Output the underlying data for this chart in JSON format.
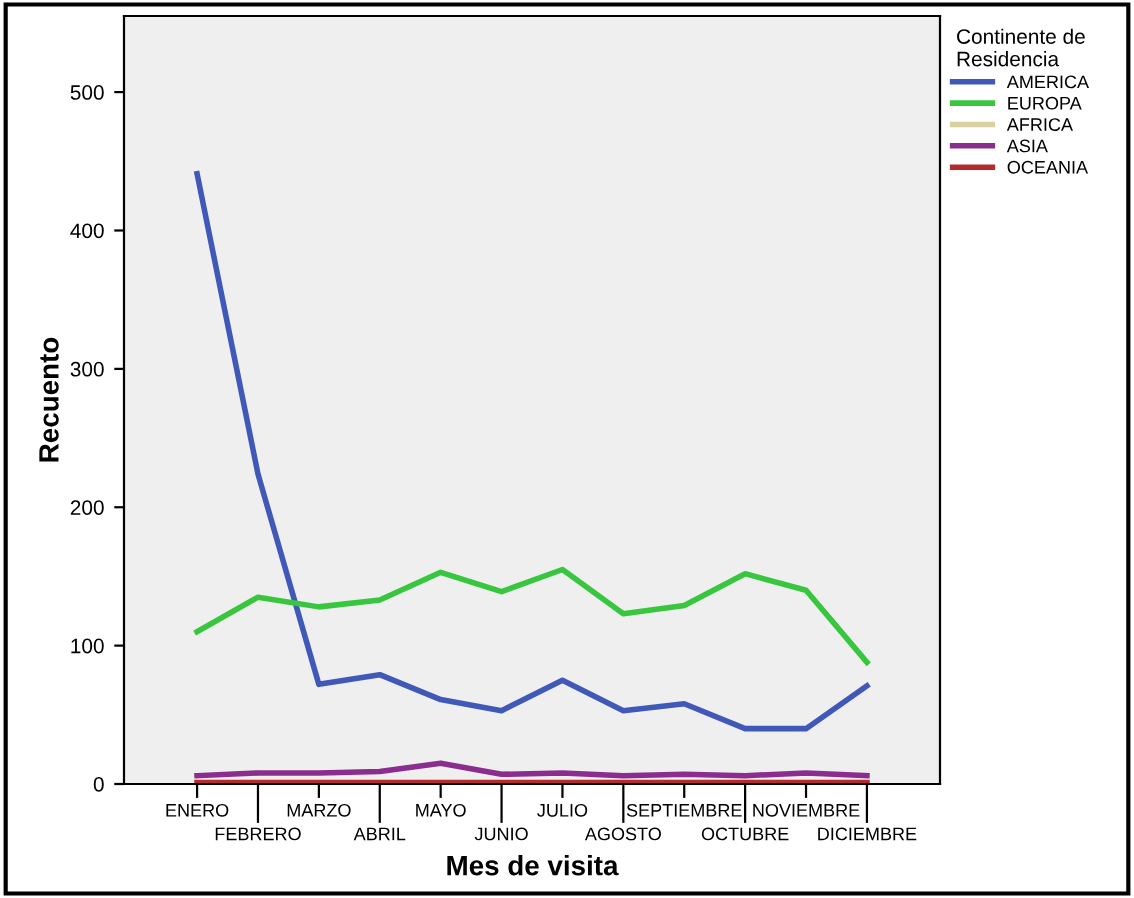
{
  "chart_data": {
    "type": "line",
    "xlabel": "Mes de visita",
    "ylabel": "Recuento",
    "legend_title": "Continente de\nResidencia",
    "legend": "top right",
    "grid": false,
    "categories": [
      "ENERO",
      "FEBRERO",
      "MARZO",
      "ABRIL",
      "MAYO",
      "JUNIO",
      "JULIO",
      "AGOSTO",
      "SEPTIEMBRE",
      "OCTUBRE",
      "NOVIEMBRE",
      "DICIEMBRE"
    ],
    "ylim": [
      0,
      555
    ],
    "yticks": [
      0,
      100,
      200,
      300,
      400,
      500
    ],
    "series": [
      {
        "name": "AMERICA",
        "color": "#4059b8",
        "values": [
          441,
          224,
          72,
          79,
          61,
          53,
          75,
          53,
          58,
          40,
          40,
          71
        ]
      },
      {
        "name": "EUROPA",
        "color": "#39c63f",
        "values": [
          110,
          135,
          128,
          133,
          153,
          139,
          155,
          123,
          129,
          152,
          140,
          88
        ]
      },
      {
        "name": "AFRICA",
        "color": "#d8d0a0",
        "values": [
          null,
          null,
          null,
          null,
          null,
          null,
          null,
          null,
          null,
          null,
          null,
          null
        ]
      },
      {
        "name": "ASIA",
        "color": "#8a2d8e",
        "values": [
          6,
          8,
          8,
          9,
          15,
          7,
          8,
          6,
          7,
          6,
          8,
          6
        ]
      },
      {
        "name": "OCEANIA",
        "color": "#b52a2a",
        "values": [
          1,
          1,
          1,
          1,
          1,
          1,
          1,
          1,
          1,
          1,
          1,
          1
        ]
      }
    ]
  }
}
